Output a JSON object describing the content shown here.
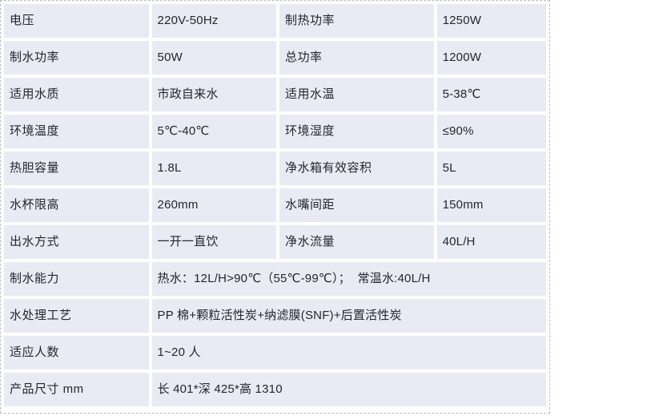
{
  "colors": {
    "cell_bg": "#e8ebf3",
    "gap_white": "#ffffff",
    "text": "#23262e",
    "selection_dash": "#b7bcc7"
  },
  "table": {
    "columns": 4,
    "rows": [
      {
        "cells": [
          {
            "t": "电压",
            "k": "label"
          },
          {
            "t": "220V-50Hz",
            "k": "value"
          },
          {
            "t": "制热功率",
            "k": "label"
          },
          {
            "t": "1250W",
            "k": "value"
          }
        ]
      },
      {
        "cells": [
          {
            "t": "制水功率",
            "k": "label"
          },
          {
            "t": "50W",
            "k": "value"
          },
          {
            "t": "总功率",
            "k": "label"
          },
          {
            "t": "1200W",
            "k": "value"
          }
        ]
      },
      {
        "cells": [
          {
            "t": "适用水质",
            "k": "label"
          },
          {
            "t": "市政自来水",
            "k": "value"
          },
          {
            "t": "适用水温",
            "k": "label"
          },
          {
            "t": "5-38℃",
            "k": "value"
          }
        ]
      },
      {
        "cells": [
          {
            "t": "环境温度",
            "k": "label"
          },
          {
            "t": "5℃-40℃",
            "k": "value"
          },
          {
            "t": "环境湿度",
            "k": "label"
          },
          {
            "t": "≤90%",
            "k": "value"
          }
        ]
      },
      {
        "cells": [
          {
            "t": "热胆容量",
            "k": "label"
          },
          {
            "t": "1.8L",
            "k": "value"
          },
          {
            "t": "净水箱有效容积",
            "k": "label"
          },
          {
            "t": "5L",
            "k": "value"
          }
        ]
      },
      {
        "cells": [
          {
            "t": "水杯限高",
            "k": "label"
          },
          {
            "t": "260mm",
            "k": "value"
          },
          {
            "t": "水嘴间距",
            "k": "label"
          },
          {
            "t": "150mm",
            "k": "value"
          }
        ]
      },
      {
        "cells": [
          {
            "t": "出水方式",
            "k": "label"
          },
          {
            "t": "一开一直饮",
            "k": "value"
          },
          {
            "t": "净水流量",
            "k": "label"
          },
          {
            "t": "40L/H",
            "k": "value"
          }
        ]
      },
      {
        "cells": [
          {
            "t": "制水能力",
            "k": "label"
          },
          {
            "t": "热水：12L/H>90℃（55℃-99℃）；  常温水:40L/H",
            "k": "value",
            "colspan": 3
          }
        ]
      },
      {
        "cells": [
          {
            "t": "水处理工艺",
            "k": "label"
          },
          {
            "t": "PP 棉+颗粒活性炭+纳滤膜(SNF)+后置活性炭",
            "k": "value",
            "colspan": 3
          }
        ]
      },
      {
        "cells": [
          {
            "t": "适应人数",
            "k": "label"
          },
          {
            "t": "1~20 人",
            "k": "value",
            "colspan": 3
          }
        ]
      },
      {
        "cells": [
          {
            "t": "产品尺寸 mm",
            "k": "label"
          },
          {
            "t": "长 401*深 425*高 1310",
            "k": "value",
            "colspan": 3
          }
        ]
      }
    ]
  }
}
